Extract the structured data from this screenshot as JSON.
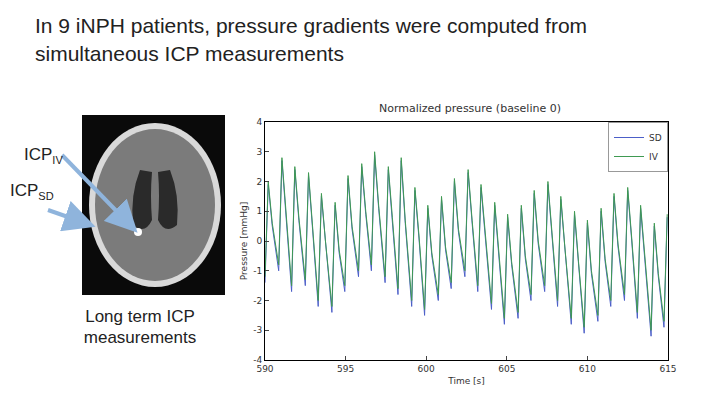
{
  "slide": {
    "heading": [
      "In 9 iNPH patients, pressure gradients were computed from",
      "simultaneous ICP measurements"
    ],
    "image_labels": [
      {
        "text": "ICP",
        "subscript": "IV"
      },
      {
        "text": "ICP",
        "subscript": "SD"
      }
    ],
    "caption": [
      "Long term ICP",
      "measurements"
    ]
  },
  "chart_data": {
    "type": "line",
    "title": "Normalized pressure (baseline 0)",
    "x_label": "Time [s]",
    "y_label": "Pressure [mmHg]",
    "xlim": [
      590,
      615
    ],
    "xticks": [
      590,
      595,
      600,
      605,
      610,
      615
    ],
    "ylim": [
      -4,
      4
    ],
    "yticks": [
      -4,
      -3,
      -2,
      -1,
      0,
      1,
      2,
      3,
      4
    ],
    "grid": false,
    "legend": "upper right",
    "x": [
      590.0,
      590.2,
      590.45,
      590.85,
      591.05,
      591.3,
      591.65,
      591.85,
      592.1,
      592.5,
      592.7,
      592.95,
      593.3,
      593.5,
      593.75,
      594.15,
      594.35,
      594.6,
      594.95,
      595.15,
      595.4,
      595.8,
      596.0,
      596.25,
      596.6,
      596.8,
      597.05,
      597.45,
      597.65,
      597.9,
      598.25,
      598.45,
      598.7,
      599.1,
      599.3,
      599.55,
      599.9,
      600.1,
      600.35,
      600.75,
      600.95,
      601.2,
      601.55,
      601.75,
      602.0,
      602.4,
      602.6,
      602.85,
      603.2,
      603.4,
      603.65,
      604.05,
      604.25,
      604.5,
      604.85,
      605.05,
      605.3,
      605.7,
      605.9,
      606.15,
      606.5,
      606.7,
      606.95,
      607.35,
      607.55,
      607.8,
      608.15,
      608.35,
      608.6,
      609.0,
      609.2,
      609.45,
      609.8,
      610.0,
      610.25,
      610.65,
      610.85,
      611.1,
      611.45,
      611.65,
      611.9,
      612.3,
      612.5,
      612.75,
      613.1,
      613.3,
      613.55,
      613.95,
      614.15,
      614.4,
      614.75,
      614.95
    ],
    "series": [
      {
        "name": "SD",
        "color": "#4c5fc8",
        "values": [
          -1.4,
          1.9,
          0.5,
          -1.0,
          2.7,
          0.9,
          -1.7,
          2.4,
          0.7,
          -1.5,
          2.2,
          0.4,
          -2.2,
          1.5,
          -0.1,
          -2.4,
          1.2,
          -0.4,
          -1.7,
          2.1,
          0.4,
          -1.2,
          2.5,
          0.9,
          -1.0,
          2.9,
          1.1,
          -1.4,
          2.4,
          0.7,
          -1.8,
          2.7,
          0.6,
          -2.2,
          1.7,
          0.1,
          -2.5,
          1.1,
          -0.5,
          -2.0,
          1.4,
          -0.3,
          -1.6,
          2.0,
          0.3,
          -1.2,
          2.3,
          0.6,
          -1.7,
          1.8,
          0.2,
          -2.3,
          1.2,
          -0.4,
          -2.8,
          0.8,
          -0.8,
          -2.6,
          1.1,
          -0.6,
          -2.0,
          1.6,
          -0.1,
          -1.7,
          1.9,
          0.2,
          -2.2,
          1.4,
          -0.3,
          -2.8,
          0.9,
          -0.8,
          -3.1,
          0.6,
          -1.1,
          -2.7,
          1.0,
          -0.7,
          -2.2,
          1.5,
          -0.2,
          -2.0,
          1.7,
          0.0,
          -2.6,
          1.1,
          -0.5,
          -3.2,
          0.5,
          -1.2,
          -2.9,
          0.8
        ]
      },
      {
        "name": "IV",
        "color": "#3f9a52",
        "values": [
          -1.2,
          2.0,
          0.6,
          -0.8,
          2.8,
          1.0,
          -1.5,
          2.5,
          0.8,
          -1.3,
          2.3,
          0.5,
          -2.0,
          1.6,
          0.0,
          -2.2,
          1.3,
          -0.3,
          -1.5,
          2.2,
          0.5,
          -1.0,
          2.6,
          1.0,
          -0.8,
          3.0,
          1.2,
          -1.2,
          2.5,
          0.8,
          -1.6,
          2.8,
          0.7,
          -2.0,
          1.8,
          0.2,
          -2.3,
          1.2,
          -0.4,
          -1.8,
          1.5,
          -0.2,
          -1.4,
          2.1,
          0.4,
          -1.0,
          2.4,
          0.7,
          -1.5,
          1.9,
          0.3,
          -2.1,
          1.3,
          -0.3,
          -2.6,
          0.9,
          -0.7,
          -2.4,
          1.2,
          -0.5,
          -1.8,
          1.7,
          0.0,
          -1.5,
          2.0,
          0.3,
          -2.0,
          1.5,
          -0.2,
          -2.6,
          1.0,
          -0.7,
          -2.9,
          0.7,
          -1.0,
          -2.5,
          1.1,
          -0.6,
          -2.0,
          1.6,
          -0.1,
          -1.8,
          1.8,
          0.1,
          -2.4,
          1.2,
          -0.4,
          -3.0,
          0.6,
          -1.1,
          -2.7,
          0.9
        ]
      }
    ]
  }
}
